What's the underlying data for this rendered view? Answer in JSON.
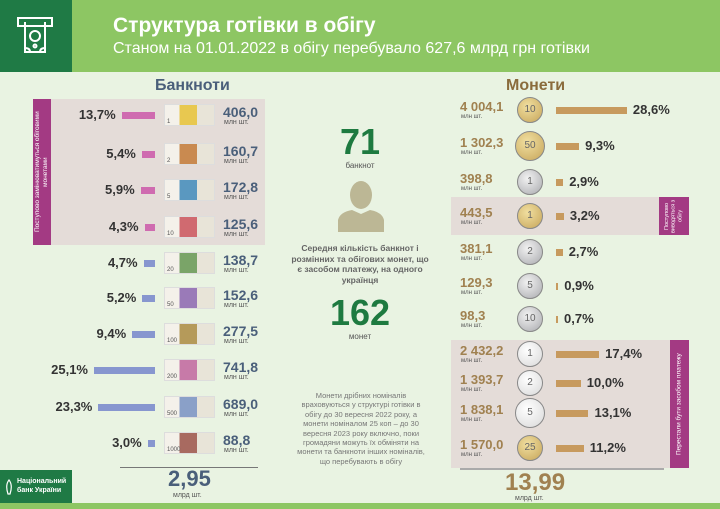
{
  "header": {
    "title": "Структура готівки в обігу",
    "subtitle": "Станом на 01.01.2022 в обігу перебувало 627,6 млрд грн готівки",
    "icon": "atm-cash-icon"
  },
  "colors": {
    "header": "#8dc663",
    "dark_green": "#1f7a45",
    "banknote_bar_old": "#cf6bb0",
    "banknote_bar": "#8796cf",
    "coin_bar": "#c79a5e",
    "strip": "#a33a83"
  },
  "banknotes": {
    "title": "Банкноти",
    "unit": "млн шт.",
    "strip_label": "Поступово замінюватимуться обіговими монетами",
    "items": [
      {
        "denomination": "1",
        "value": "406,0",
        "pct": "13,7%",
        "color": "#e8c850"
      },
      {
        "denomination": "2",
        "value": "160,7",
        "pct": "5,4%",
        "color": "#c98a50"
      },
      {
        "denomination": "5",
        "value": "172,8",
        "pct": "5,9%",
        "color": "#5a98c0"
      },
      {
        "denomination": "10",
        "value": "125,6",
        "pct": "4,3%",
        "color": "#d06a70"
      },
      {
        "denomination": "20",
        "value": "138,7",
        "pct": "4,7%",
        "color": "#7aa468"
      },
      {
        "denomination": "50",
        "value": "152,6",
        "pct": "5,2%",
        "color": "#9a7ab8"
      },
      {
        "denomination": "100",
        "value": "277,5",
        "pct": "9,4%",
        "color": "#b59a5a"
      },
      {
        "denomination": "200",
        "value": "741,8",
        "pct": "25,1%",
        "color": "#c77aa8"
      },
      {
        "denomination": "500",
        "value": "689,0",
        "pct": "23,3%",
        "color": "#8aa0c8"
      },
      {
        "denomination": "1000",
        "value": "88,8",
        "pct": "3,0%",
        "color": "#a86a60"
      }
    ],
    "total": "2,95",
    "total_unit": "млрд шт."
  },
  "center": {
    "banknotes_num": "71",
    "banknotes_label": "банкнот",
    "caption": "Середня кількість банкнот і розмінних та обігових монет, що є засобом платежу, на одного українця",
    "coins_num": "162",
    "coins_label": "монет",
    "note": "Монети дрібних номіналів враховуються у структурі готівки в обігу до 30 вересня 2022 року, а монети номіналом 25 коп – до 30 вересня 2023 року включно, поки громадяни можуть їх обміняти на монети та банкноти інших номіналів, що перебувають в обігу",
    "person_icon": "person-icon"
  },
  "coins": {
    "title": "Монети",
    "unit": "млн шт.",
    "strip_label_1": "Поступово виводяться з обігу",
    "strip_label_2": "Перестали бути засобом платежу",
    "items": [
      {
        "denomination": "10",
        "value": "4 004,1",
        "pct": "28,6%",
        "metal": "gold"
      },
      {
        "denomination": "50",
        "value": "1 302,3",
        "pct": "9,3%",
        "metal": "gold"
      },
      {
        "denomination": "1",
        "value": "398,8",
        "pct": "2,9%",
        "metal": "silver"
      },
      {
        "denomination": "1",
        "value": "443,5",
        "pct": "3,2%",
        "metal": "gold"
      },
      {
        "denomination": "2",
        "value": "381,1",
        "pct": "2,7%",
        "metal": "silver"
      },
      {
        "denomination": "5",
        "value": "129,3",
        "pct": "0,9%",
        "metal": "silver"
      },
      {
        "denomination": "10",
        "value": "98,3",
        "pct": "0,7%",
        "metal": "silver"
      },
      {
        "denomination": "1",
        "value": "2 432,2",
        "pct": "17,4%",
        "metal": "white"
      },
      {
        "denomination": "2",
        "value": "1 393,7",
        "pct": "10,0%",
        "metal": "white"
      },
      {
        "denomination": "5",
        "value": "1 838,1",
        "pct": "13,1%",
        "metal": "white"
      },
      {
        "denomination": "25",
        "value": "1 570,0",
        "pct": "11,2%",
        "metal": "gold"
      }
    ],
    "total": "13,99",
    "total_unit": "млрд шт."
  },
  "footer": {
    "logo_line1": "Національний",
    "logo_line2": "банк України"
  },
  "chart_data": [
    {
      "type": "bar",
      "title": "Банкноти",
      "categories": [
        "1",
        "2",
        "5",
        "10",
        "20",
        "50",
        "100",
        "200",
        "500",
        "1000"
      ],
      "values": [
        13.7,
        5.4,
        5.9,
        4.3,
        4.7,
        5.2,
        9.4,
        25.1,
        23.3,
        3.0
      ],
      "counts_mln": [
        406.0,
        160.7,
        172.8,
        125.6,
        138.7,
        152.6,
        277.5,
        741.8,
        689.0,
        88.8
      ]
    },
    {
      "type": "bar",
      "title": "Монети",
      "categories": [
        "10",
        "50",
        "1",
        "1",
        "2",
        "5",
        "10",
        "1",
        "2",
        "5",
        "25"
      ],
      "values": [
        28.6,
        9.3,
        2.9,
        3.2,
        2.7,
        0.9,
        0.7,
        17.4,
        10.0,
        13.1,
        11.2
      ],
      "counts_mln": [
        4004.1,
        1302.3,
        398.8,
        443.5,
        381.1,
        129.3,
        98.3,
        2432.2,
        1393.7,
        1838.1,
        1570.0
      ]
    }
  ]
}
